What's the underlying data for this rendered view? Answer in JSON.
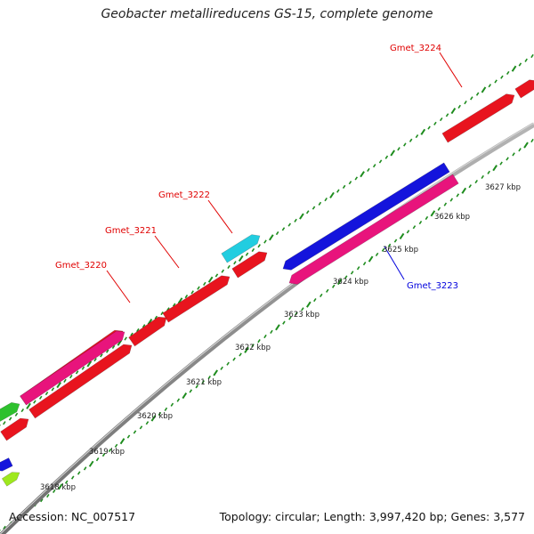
{
  "title": "Geobacter metallireducens GS-15, complete genome",
  "footer": {
    "accession": "Accession: NC_007517",
    "summary": "Topology: circular; Length: 3,997,420 bp; Genes: 3,577"
  },
  "colors": {
    "backbone": "#8c8c8c",
    "tick": "#1e8c1e",
    "label_forward": "#e00000",
    "label_reverse": "#0000dd"
  },
  "scale_labels": [
    "3618 kbp",
    "3619 kbp",
    "3620 kbp",
    "3621 kbp",
    "3622 kbp",
    "3623 kbp",
    "3624 kbp",
    "3625 kbp",
    "3626 kbp",
    "3627 kbp"
  ],
  "gene_labels": [
    {
      "name": "Gmet_3220",
      "strand": "forward"
    },
    {
      "name": "Gmet_3221",
      "strand": "forward"
    },
    {
      "name": "Gmet_3222",
      "strand": "forward"
    },
    {
      "name": "Gmet_3223",
      "strand": "reverse"
    },
    {
      "name": "Gmet_3224",
      "strand": "forward"
    }
  ],
  "genes": [
    {
      "color": "#e8141e",
      "strand": "forward"
    },
    {
      "color": "#e8141e",
      "strand": "forward"
    },
    {
      "color": "#e8141e",
      "strand": "forward"
    },
    {
      "color": "#e8141e",
      "strand": "forward"
    },
    {
      "color": "#e8141e",
      "strand": "forward"
    },
    {
      "color": "#e8141e",
      "strand": "forward"
    },
    {
      "color": "#e8141e",
      "strand": "forward"
    },
    {
      "color": "#e8141e",
      "strand": "forward"
    },
    {
      "color": "#e8147c",
      "strand": "forward"
    },
    {
      "color": "#22cde0",
      "strand": "forward"
    },
    {
      "color": "#2ec12e",
      "strand": "forward"
    },
    {
      "color": "#9ee81e",
      "strand": "forward"
    },
    {
      "color": "#1414dc",
      "strand": "reverse"
    },
    {
      "color": "#e8147c",
      "strand": "reverse"
    },
    {
      "color": "#1414dc",
      "strand": "reverse"
    }
  ]
}
